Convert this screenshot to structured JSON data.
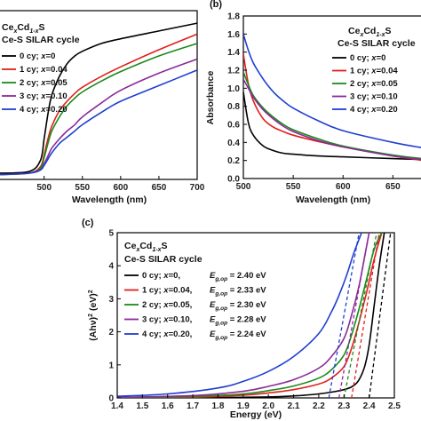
{
  "chart_data": [
    {
      "type": "line",
      "panel_label": "",
      "title": "CexCd1-xS",
      "subtitle": "Ce-S SILAR cycle",
      "xlabel": "Wavelength (nm)",
      "ylabel": "",
      "xlim": [
        440,
        700
      ],
      "xticks": [
        "500",
        "550",
        "600",
        "650",
        "700"
      ],
      "series": [
        {
          "name": "0 cy; x=0",
          "color": "#000000",
          "x": [
            440,
            480,
            495,
            500,
            505,
            510,
            520,
            530,
            540,
            550,
            575,
            600,
            650,
            700
          ],
          "y": [
            0.04,
            0.05,
            0.12,
            0.26,
            0.42,
            0.54,
            0.66,
            0.74,
            0.79,
            0.82,
            0.87,
            0.9,
            0.95,
            1.0
          ]
        },
        {
          "name": "1 cy; x=0.04",
          "color": "#e0201c",
          "x": [
            440,
            480,
            495,
            500,
            505,
            510,
            520,
            530,
            540,
            550,
            575,
            600,
            650,
            700
          ],
          "y": [
            0.03,
            0.04,
            0.08,
            0.16,
            0.26,
            0.34,
            0.44,
            0.5,
            0.55,
            0.59,
            0.66,
            0.72,
            0.83,
            0.93
          ]
        },
        {
          "name": "2 cy; x=0.05",
          "color": "#1a8a1a",
          "x": [
            440,
            480,
            495,
            500,
            505,
            510,
            520,
            530,
            540,
            550,
            575,
            600,
            650,
            700
          ],
          "y": [
            0.03,
            0.04,
            0.07,
            0.14,
            0.23,
            0.31,
            0.4,
            0.47,
            0.52,
            0.56,
            0.63,
            0.69,
            0.79,
            0.87
          ]
        },
        {
          "name": "3 cy; x=0.10",
          "color": "#8a2a9a",
          "x": [
            440,
            480,
            495,
            500,
            505,
            510,
            520,
            530,
            540,
            550,
            575,
            600,
            650,
            700
          ],
          "y": [
            0.03,
            0.04,
            0.06,
            0.1,
            0.15,
            0.2,
            0.26,
            0.31,
            0.35,
            0.4,
            0.49,
            0.57,
            0.68,
            0.77
          ]
        },
        {
          "name": "4 cy; x=0.20",
          "color": "#1f3fd0",
          "x": [
            440,
            480,
            495,
            500,
            505,
            510,
            520,
            530,
            540,
            550,
            575,
            600,
            650,
            700
          ],
          "y": [
            0.03,
            0.04,
            0.06,
            0.09,
            0.13,
            0.17,
            0.23,
            0.27,
            0.31,
            0.35,
            0.43,
            0.5,
            0.6,
            0.7
          ]
        }
      ]
    },
    {
      "type": "line",
      "panel_label": "(b)",
      "title": "CexCd1-xS",
      "subtitle": "Ce-S SILAR cycle",
      "xlabel": "Wavelength (nm)",
      "ylabel": "Absorbance",
      "xlim": [
        500,
        680
      ],
      "ylim": [
        0,
        1.8
      ],
      "xticks": [
        "500",
        "550",
        "600",
        "650"
      ],
      "yticks": [
        "0.0",
        "0.2",
        "0.4",
        "0.6",
        "0.8",
        "1.0",
        "1.2",
        "1.4",
        "1.6",
        "1.8"
      ],
      "series": [
        {
          "name": "0 cy; x=0",
          "color": "#000000",
          "x": [
            500,
            505,
            510,
            520,
            530,
            540,
            550,
            575,
            600,
            650,
            680
          ],
          "y": [
            0.96,
            0.62,
            0.48,
            0.36,
            0.31,
            0.28,
            0.27,
            0.25,
            0.24,
            0.22,
            0.21
          ]
        },
        {
          "name": "1 cy; x=0.04",
          "color": "#e0201c",
          "x": [
            500,
            505,
            510,
            520,
            530,
            540,
            550,
            575,
            600,
            650,
            680
          ],
          "y": [
            1.38,
            1.05,
            0.86,
            0.66,
            0.57,
            0.52,
            0.48,
            0.41,
            0.35,
            0.25,
            0.2
          ]
        },
        {
          "name": "2 cy; x=0.05",
          "color": "#1a8a1a",
          "x": [
            500,
            505,
            510,
            520,
            530,
            540,
            550,
            575,
            600,
            650,
            680
          ],
          "y": [
            1.18,
            1.04,
            0.92,
            0.78,
            0.68,
            0.6,
            0.54,
            0.44,
            0.36,
            0.26,
            0.22
          ]
        },
        {
          "name": "3 cy; x=0.10",
          "color": "#8a2a9a",
          "x": [
            500,
            505,
            510,
            520,
            530,
            540,
            550,
            575,
            600,
            650,
            680
          ],
          "y": [
            1.1,
            1.0,
            0.9,
            0.76,
            0.66,
            0.58,
            0.52,
            0.42,
            0.35,
            0.25,
            0.21
          ]
        },
        {
          "name": "4 cy; x=0.20",
          "color": "#1f3fd0",
          "x": [
            500,
            505,
            510,
            520,
            530,
            540,
            550,
            575,
            600,
            650,
            680
          ],
          "y": [
            1.6,
            1.42,
            1.28,
            1.1,
            0.96,
            0.86,
            0.78,
            0.64,
            0.53,
            0.4,
            0.34
          ]
        }
      ]
    },
    {
      "type": "line",
      "panel_label": "(c)",
      "title": "CexCd1-xS",
      "subtitle": "Ce-S SILAR cycle",
      "xlabel": "Energy (eV)",
      "ylabel": "(Ahν)2 (eV)2",
      "xlim": [
        1.4,
        2.5
      ],
      "ylim": [
        0,
        5
      ],
      "xticks": [
        "1.4",
        "1.5",
        "1.6",
        "1.7",
        "1.8",
        "1.9",
        "2.0",
        "2.1",
        "2.2",
        "2.3",
        "2.4",
        "2.5"
      ],
      "yticks": [
        "0",
        "1",
        "2",
        "3",
        "4",
        "5"
      ],
      "series": [
        {
          "name": "0 cy; x=0,",
          "eg": "2.40 eV",
          "color": "#000000",
          "x": [
            1.4,
            1.8,
            2.0,
            2.1,
            2.2,
            2.3,
            2.35,
            2.38,
            2.4,
            2.42,
            2.44,
            2.46
          ],
          "y": [
            0.0,
            0.01,
            0.03,
            0.06,
            0.12,
            0.25,
            0.45,
            0.9,
            1.6,
            2.8,
            4.0,
            5.0
          ]
        },
        {
          "name": "1 cy; x=0.04,",
          "eg": "2.33 eV",
          "color": "#e0201c",
          "x": [
            1.4,
            1.7,
            1.9,
            2.0,
            2.1,
            2.2,
            2.25,
            2.3,
            2.33,
            2.36,
            2.39,
            2.42,
            2.45
          ],
          "y": [
            0.0,
            0.02,
            0.08,
            0.15,
            0.25,
            0.42,
            0.6,
            0.95,
            1.5,
            2.3,
            3.2,
            4.2,
            5.0
          ]
        },
        {
          "name": "2 cy; x=0.05,",
          "eg": "2.30 eV",
          "color": "#1a8a1a",
          "x": [
            1.4,
            1.7,
            1.9,
            2.0,
            2.1,
            2.2,
            2.25,
            2.3,
            2.33,
            2.36,
            2.39,
            2.42,
            2.45
          ],
          "y": [
            0.01,
            0.04,
            0.12,
            0.22,
            0.36,
            0.6,
            0.85,
            1.3,
            1.9,
            2.7,
            3.6,
            4.5,
            5.0
          ]
        },
        {
          "name": "3 cy; x=0.10,",
          "eg": "2.28 eV",
          "color": "#8a2a9a",
          "x": [
            1.4,
            1.7,
            1.9,
            2.0,
            2.1,
            2.2,
            2.25,
            2.3,
            2.33,
            2.36,
            2.38,
            2.4
          ],
          "y": [
            0.02,
            0.07,
            0.2,
            0.35,
            0.55,
            0.9,
            1.25,
            1.8,
            2.5,
            3.4,
            4.2,
            5.0
          ]
        },
        {
          "name": "4 cy; x=0.20,",
          "eg": "2.24 eV",
          "color": "#1f3fd0",
          "x": [
            1.4,
            1.6,
            1.8,
            1.9,
            2.0,
            2.1,
            2.2,
            2.25,
            2.28,
            2.31,
            2.34,
            2.37
          ],
          "y": [
            0.05,
            0.12,
            0.3,
            0.5,
            0.8,
            1.25,
            1.95,
            2.6,
            3.1,
            3.7,
            4.4,
            5.0
          ]
        }
      ],
      "fits": [
        {
          "color": "#000000",
          "x": [
            2.4,
            2.485
          ],
          "y": [
            0,
            5
          ]
        },
        {
          "color": "#e0201c",
          "x": [
            2.33,
            2.44
          ],
          "y": [
            0,
            5
          ]
        },
        {
          "color": "#1a8a1a",
          "x": [
            2.3,
            2.43
          ],
          "y": [
            0,
            5
          ]
        },
        {
          "color": "#8a2a9a",
          "x": [
            2.28,
            2.4
          ],
          "y": [
            0,
            5
          ]
        },
        {
          "color": "#1f3fd0",
          "x": [
            2.24,
            2.36
          ],
          "y": [
            0,
            5
          ]
        }
      ]
    }
  ]
}
